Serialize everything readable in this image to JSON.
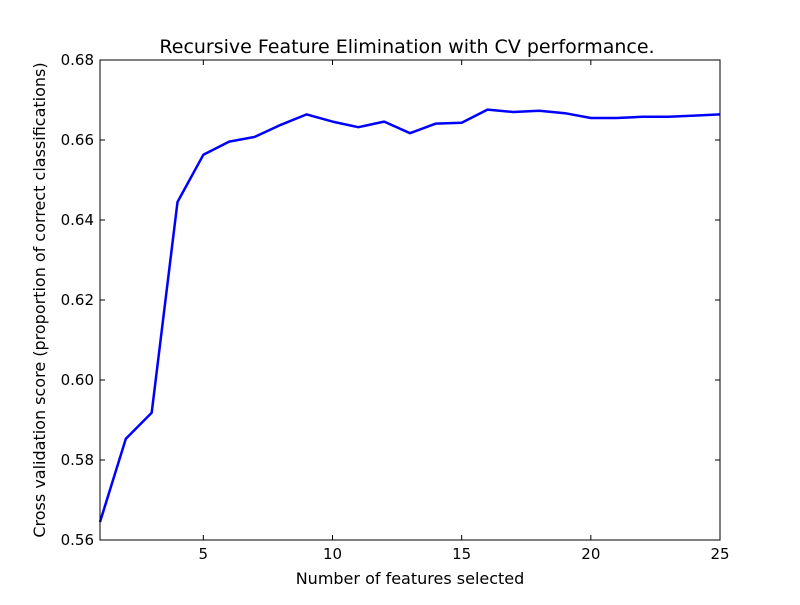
{
  "chart_data": {
    "type": "line",
    "title": "Recursive Feature Elimination with CV performance.",
    "xlabel": "Number of features selected",
    "ylabel": "Cross validation score (proportion of correct classifications)",
    "xlim": [
      1,
      25
    ],
    "ylim": [
      0.56,
      0.68
    ],
    "xticks": [
      5,
      10,
      15,
      20,
      25
    ],
    "xtick_labels": [
      "5",
      "10",
      "15",
      "20",
      "25"
    ],
    "yticks": [
      0.56,
      0.58,
      0.6,
      0.62,
      0.64,
      0.66,
      0.68
    ],
    "ytick_labels": [
      "0.56",
      "0.58",
      "0.60",
      "0.62",
      "0.64",
      "0.66",
      "0.68"
    ],
    "grid": false,
    "line_color": "#0000ff",
    "series": [
      {
        "x": [
          1,
          2,
          3,
          4,
          5,
          6,
          7,
          8,
          9,
          10,
          11,
          12,
          13,
          14,
          15,
          16,
          17,
          18,
          19,
          20,
          21,
          22,
          23,
          24,
          25
        ],
        "values": [
          0.5645,
          0.5853,
          0.5918,
          0.6445,
          0.6563,
          0.6596,
          0.6608,
          0.6638,
          0.6664,
          0.6646,
          0.6632,
          0.6646,
          0.6617,
          0.6641,
          0.6643,
          0.6676,
          0.667,
          0.6673,
          0.6667,
          0.6655,
          0.6655,
          0.6658,
          0.6658,
          0.6661,
          0.6664
        ]
      }
    ]
  }
}
